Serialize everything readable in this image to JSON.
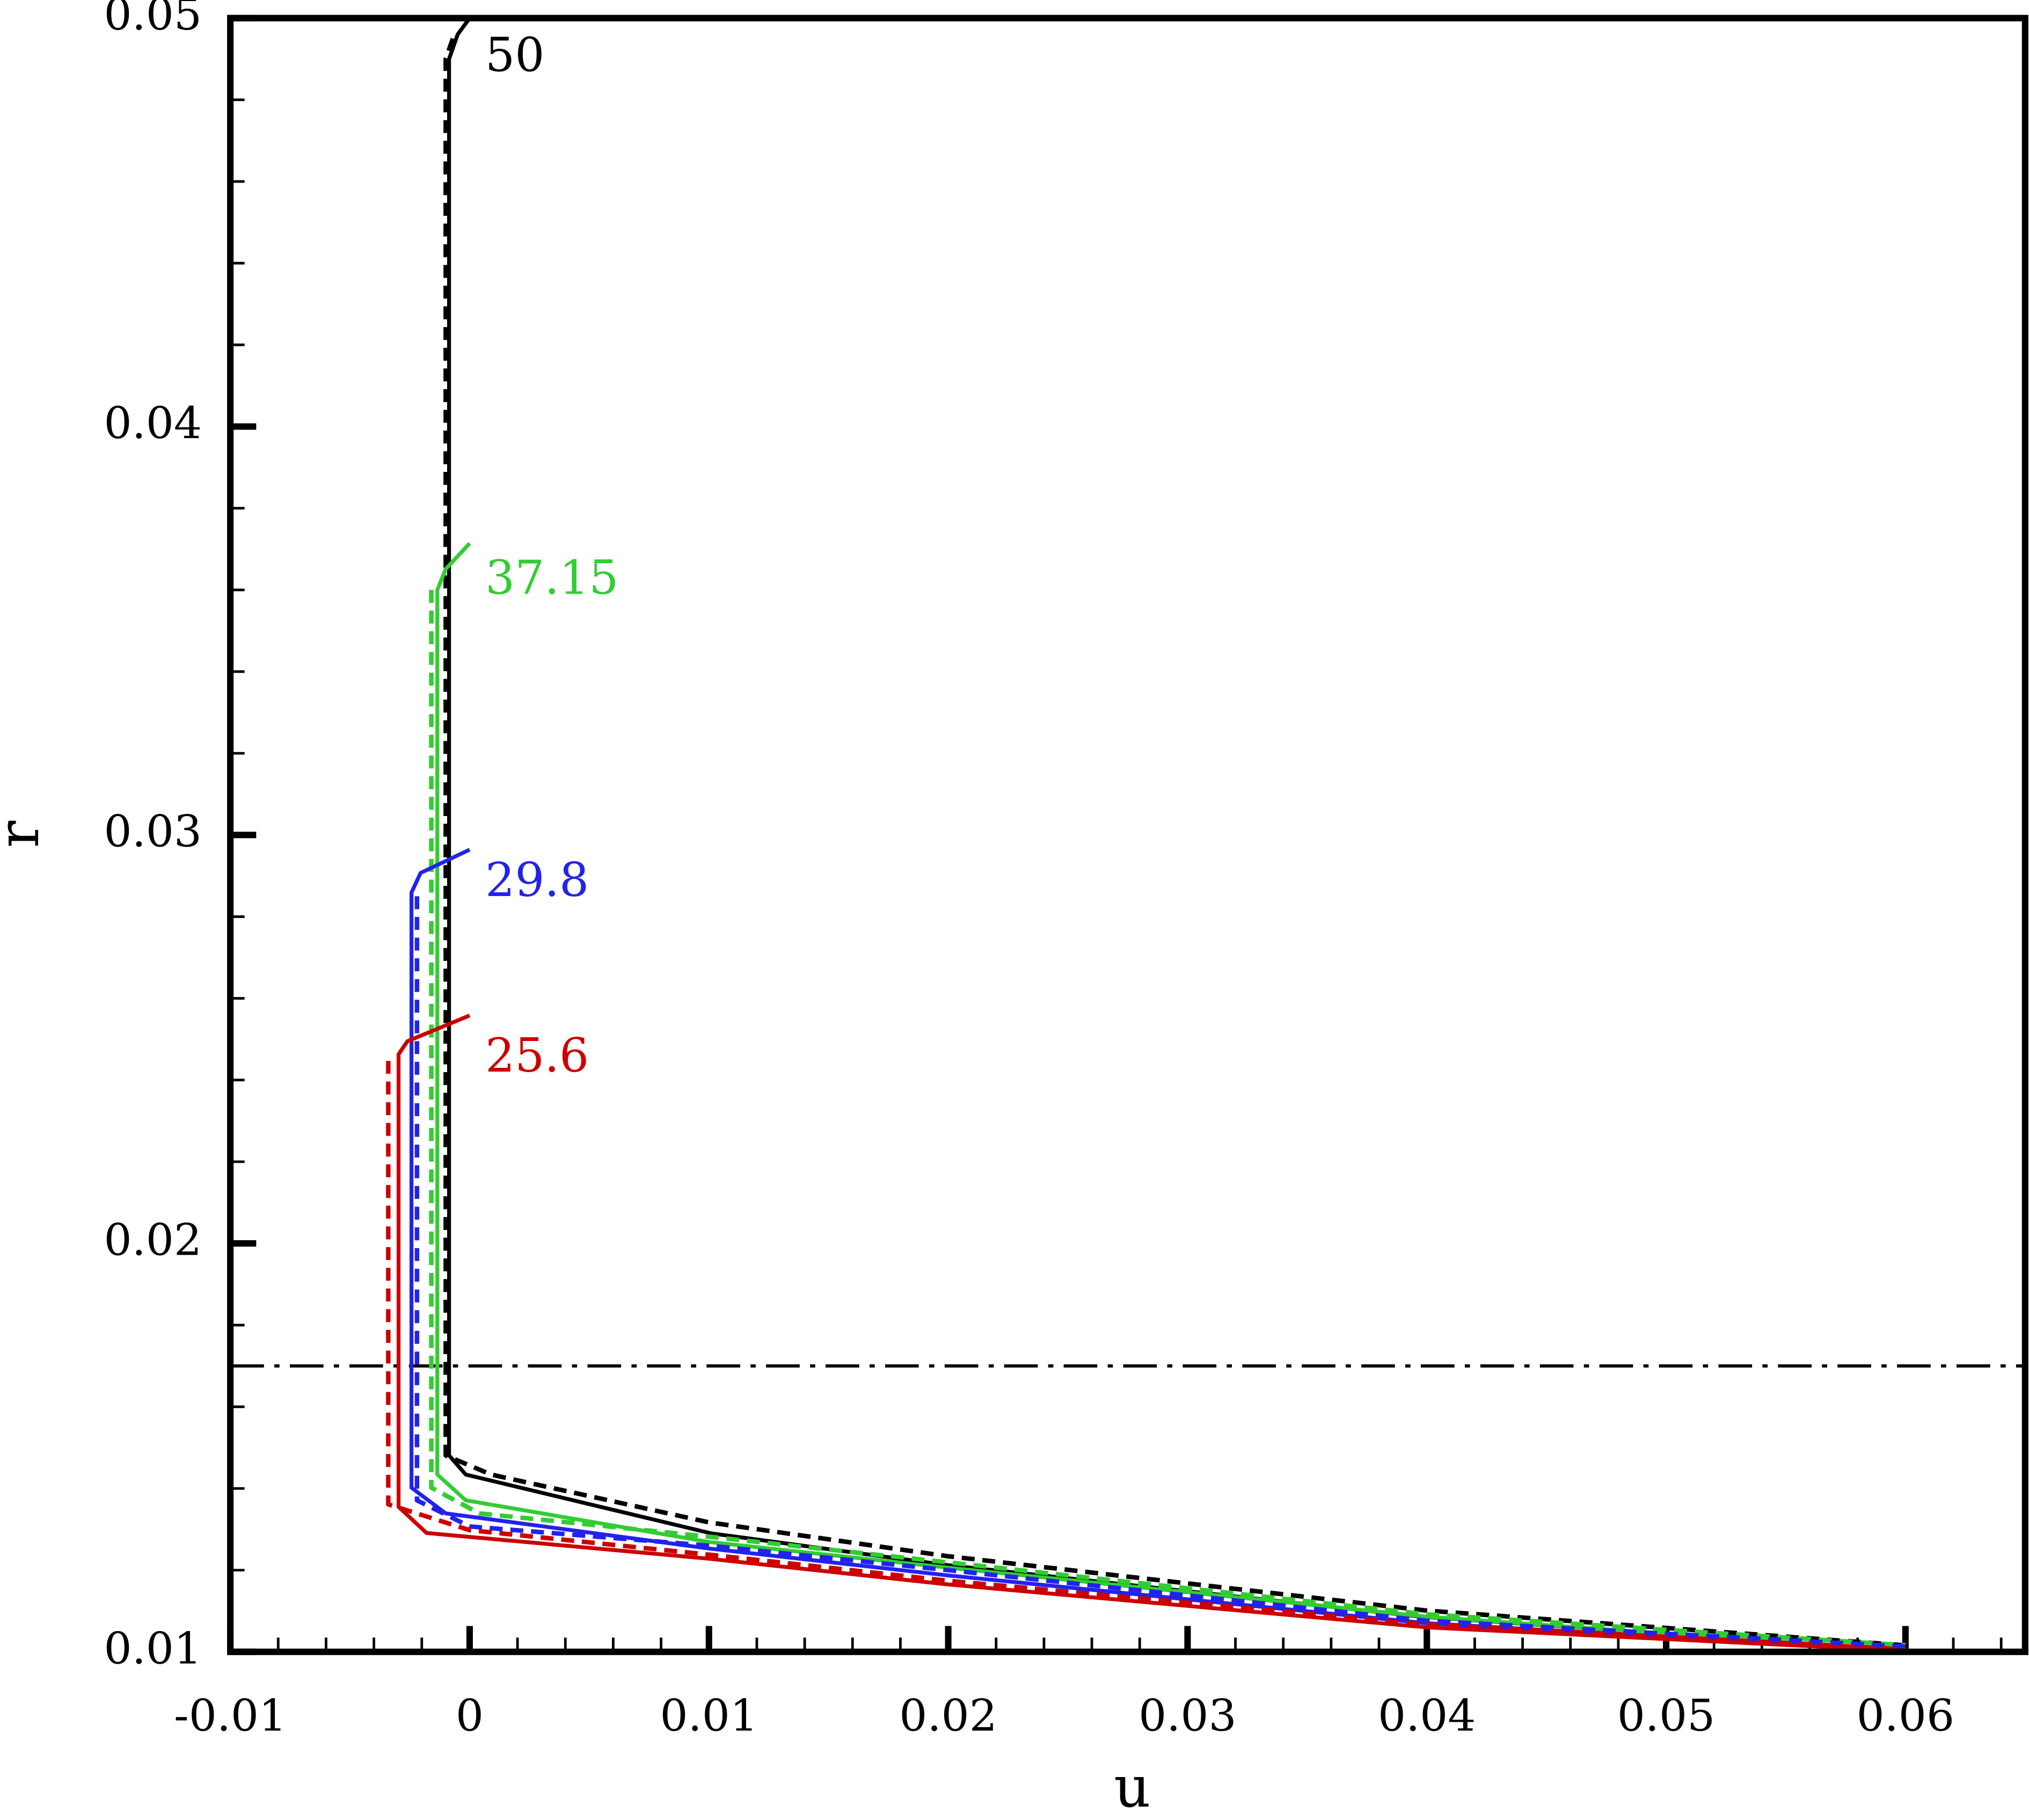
{
  "chart_data": {
    "type": "line",
    "x_label": "u",
    "y_label": "r",
    "xlim": [
      -0.01,
      0.065
    ],
    "ylim": [
      0.01,
      0.05
    ],
    "xticks": [
      -0.01,
      0,
      0.01,
      0.02,
      0.03,
      0.04,
      0.05,
      0.06
    ],
    "yticks": [
      0.01,
      0.02,
      0.03,
      0.04,
      0.05
    ],
    "xminorticks": [
      -0.008,
      -0.006,
      -0.004,
      -0.002,
      0.002,
      0.004,
      0.006,
      0.008,
      0.012,
      0.014,
      0.016,
      0.018,
      0.022,
      0.024,
      0.026,
      0.028,
      0.032,
      0.034,
      0.036,
      0.038,
      0.042,
      0.044,
      0.046,
      0.048,
      0.052,
      0.054,
      0.056,
      0.058,
      0.062,
      0.064
    ],
    "yminorticks": [
      0.012,
      0.014,
      0.016,
      0.018,
      0.022,
      0.024,
      0.026,
      0.028,
      0.032,
      0.034,
      0.036,
      0.038,
      0.042,
      0.044,
      0.046,
      0.048
    ],
    "reference_line": {
      "y": 0.017
    },
    "series": [
      {
        "color": "#000000",
        "dash": false,
        "x": [
          0,
          -0.0005,
          -0.00086,
          -0.00086,
          -0.00016,
          0.0101,
          0.02,
          0.0398,
          0.0609
        ],
        "values": [
          0.05,
          0.0496,
          0.049,
          0.01481,
          0.01434,
          0.0129,
          0.01212,
          0.01086,
          0.01
        ]
      },
      {
        "color": "#000000",
        "dash": true,
        "x": [
          -0.0007,
          -0.001,
          -0.001,
          0.0009,
          0.01,
          0.02,
          0.04,
          0.06
        ],
        "values": [
          0.0495,
          0.049,
          0.01481,
          0.01434,
          0.01317,
          0.01234,
          0.01101,
          0.01016
        ]
      },
      {
        "color": "#33cc33",
        "dash": false,
        "x": [
          0,
          -0.001,
          -0.00135,
          -0.00135,
          -0.00016,
          0.01,
          0.02,
          0.04,
          0.0609
        ],
        "values": [
          0.03714,
          0.03651,
          0.036,
          0.01434,
          0.01371,
          0.01269,
          0.01206,
          0.01086,
          0.01
        ]
      },
      {
        "color": "#33cc33",
        "dash": true,
        "x": [
          -0.0016,
          -0.0016,
          0.0004,
          0.01,
          0.02,
          0.04,
          0.06
        ],
        "values": [
          0.036,
          0.01402,
          0.01339,
          0.01282,
          0.01219,
          0.01092,
          0.01016
        ]
      },
      {
        "color": "#2222ee",
        "dash": false,
        "x": [
          0,
          -0.00205,
          -0.00243,
          -0.00243,
          -0.001,
          0.01,
          0.02,
          0.04,
          0.0609
        ],
        "values": [
          0.02964,
          0.02907,
          0.02859,
          0.01402,
          0.01339,
          0.01253,
          0.01187,
          0.0107,
          0.01
        ]
      },
      {
        "color": "#2222ee",
        "dash": true,
        "x": [
          -0.0022,
          -0.0022,
          0,
          0.01,
          0.02,
          0.04,
          0.06
        ],
        "values": [
          0.0285,
          0.01371,
          0.01307,
          0.0126,
          0.012,
          0.01076,
          0.01013
        ]
      },
      {
        "color": "#cc0000",
        "dash": false,
        "x": [
          0,
          -0.0026,
          -0.00297,
          -0.00297,
          -0.0018,
          0.01,
          0.02,
          0.04,
          0.0609
        ],
        "values": [
          0.02558,
          0.02495,
          0.02463,
          0.01355,
          0.01291,
          0.01228,
          0.01165,
          0.0106,
          0.01
        ]
      },
      {
        "color": "#cc0000",
        "dash": true,
        "x": [
          -0.0034,
          -0.0034,
          0,
          0.01,
          0.02,
          0.04,
          0.06
        ],
        "values": [
          0.02447,
          0.01361,
          0.01298,
          0.01238,
          0.01174,
          0.01067,
          0.01006
        ]
      }
    ],
    "annotations": [
      {
        "text": "50",
        "color": "#000000",
        "r": 0.049
      },
      {
        "text": "37.15",
        "color": "#33cc33",
        "r": 0.0362
      },
      {
        "text": "29.8",
        "color": "#2222ee",
        "r": 0.0288
      },
      {
        "text": "25.6",
        "color": "#cc0000",
        "r": 0.0245
      }
    ]
  }
}
